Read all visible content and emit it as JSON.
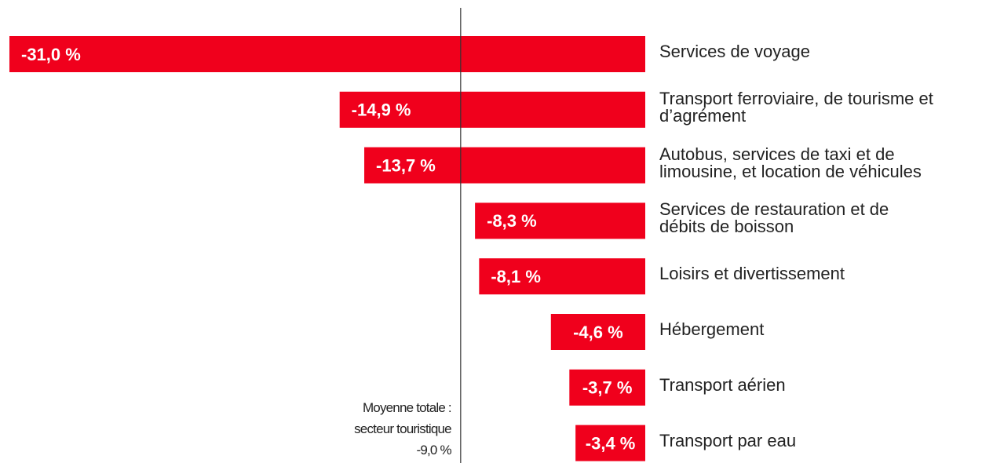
{
  "chart_data": {
    "type": "bar",
    "orientation": "horizontal",
    "color": "#f0001c",
    "categories": [
      "Services de voyage",
      "Transport ferroviaire, de tourisme et\nd’agrément",
      "Autobus, services de taxi et de\nlimousine, et location de véhicules",
      "Services de restauration et de\ndébits de boisson",
      "Loisirs et divertissement",
      "Hébergement",
      "Transport aérien",
      "Transport par eau"
    ],
    "values": [
      -31.0,
      -14.9,
      -13.7,
      -8.3,
      -8.1,
      -4.6,
      -3.7,
      -3.4
    ],
    "value_labels": [
      "-31,0 %",
      "-14,9 %",
      "-13,7 %",
      "-8,3 %",
      "-8,1 %",
      "-4,6 %",
      "-3,7 %",
      "-3,4 %"
    ],
    "reference_line": {
      "value": -9.0,
      "label": "-9,0 %",
      "text": [
        "Moyenne totale :",
        "secteur touristique"
      ]
    }
  }
}
